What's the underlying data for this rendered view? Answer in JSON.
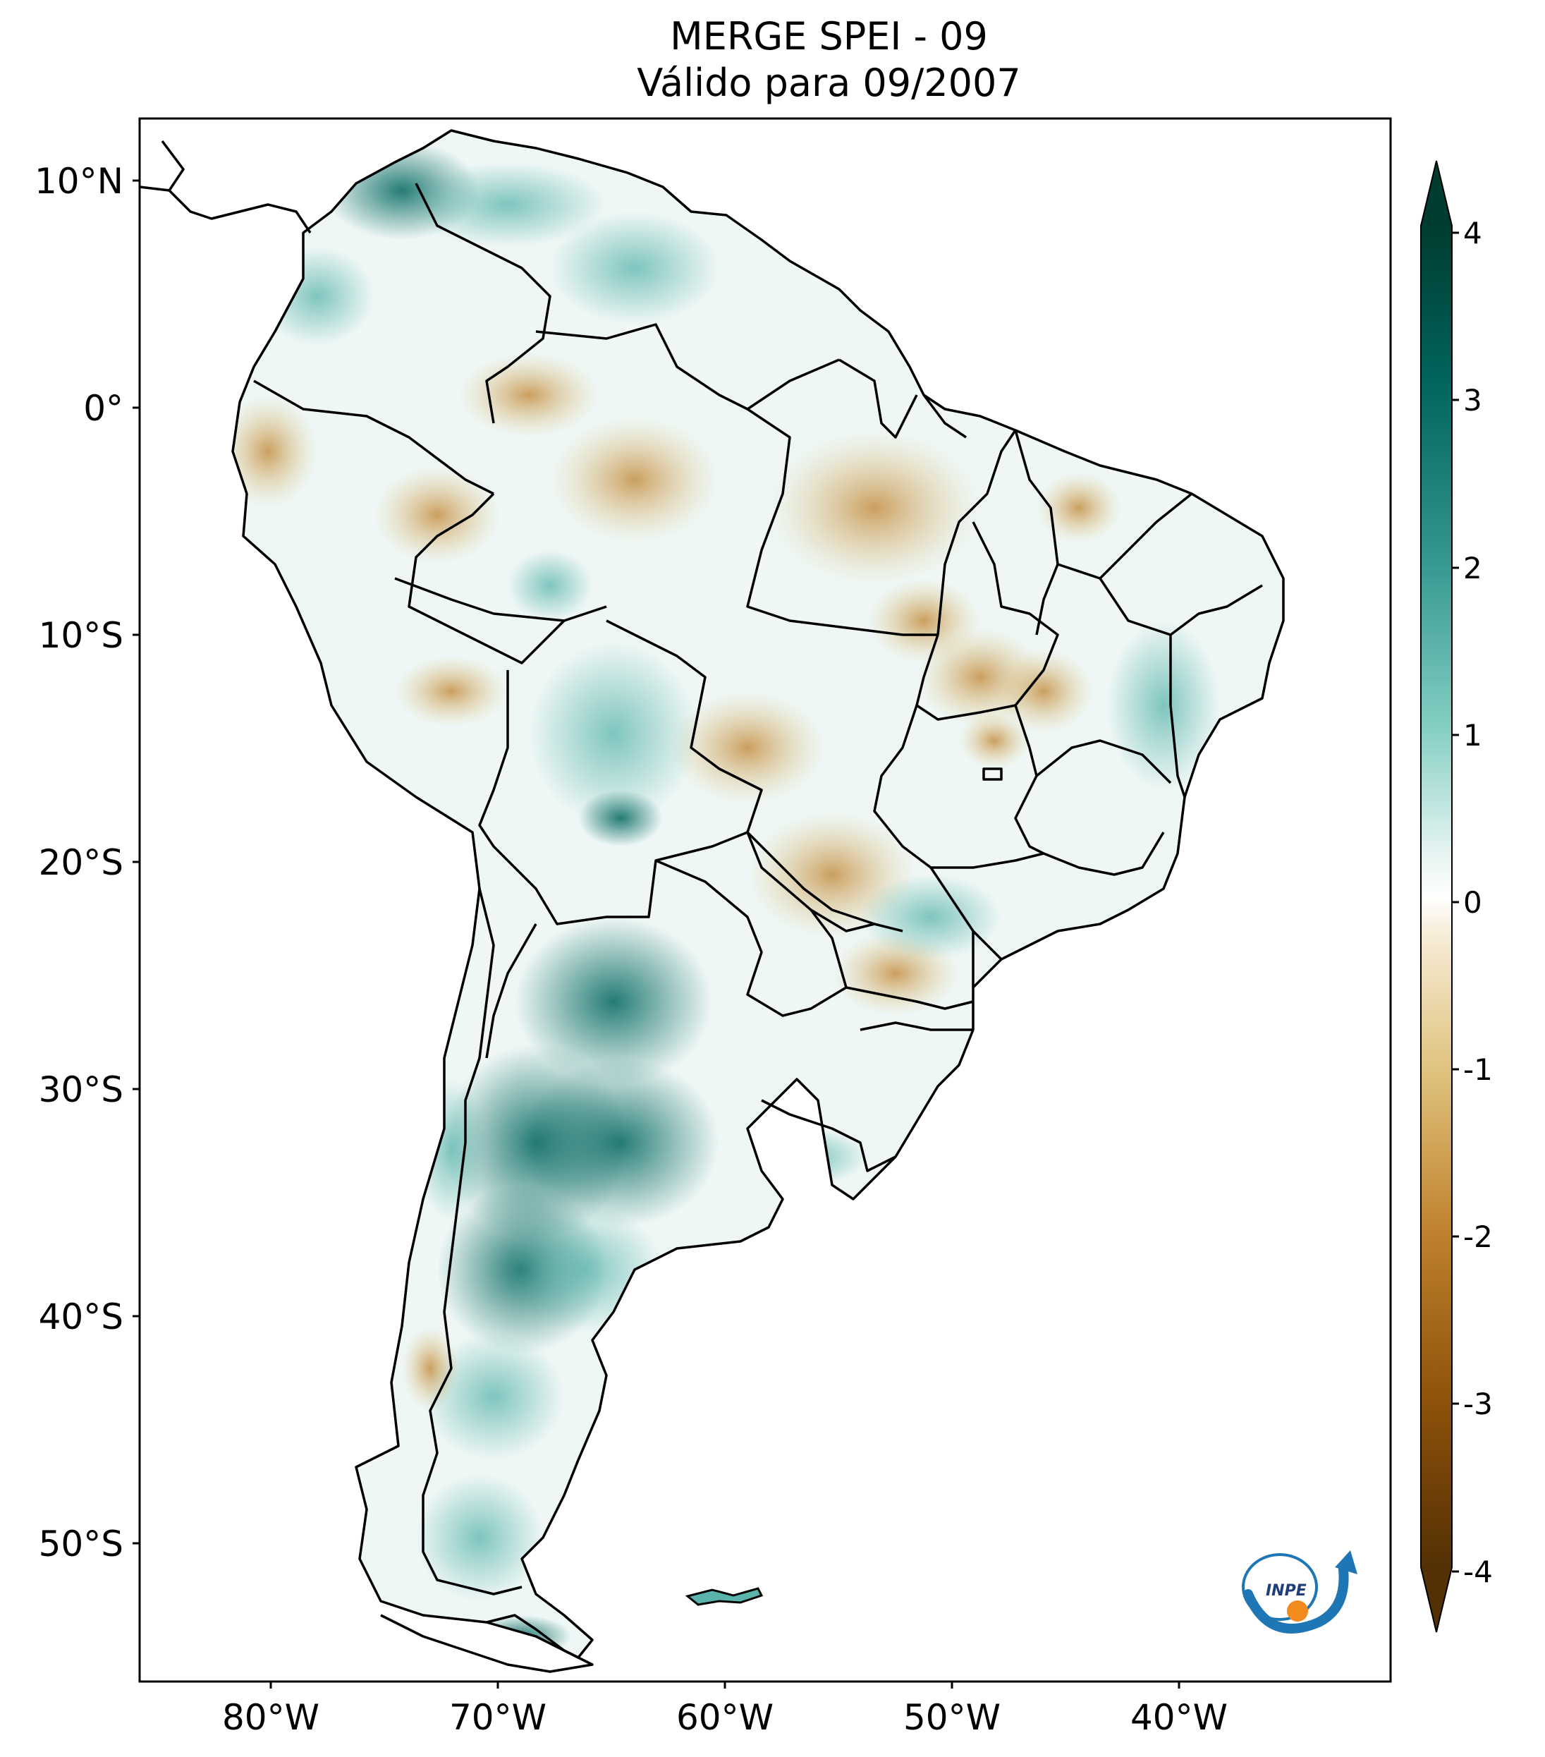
{
  "title_line1": "MERGE   SPEI - 09",
  "title_line2": "Válido para 09/2007",
  "lat_labels": [
    "10°N",
    "0°",
    "10°S",
    "20°S",
    "30°S",
    "40°S",
    "50°S"
  ],
  "lon_labels": [
    "80°W",
    "70°W",
    "60°W",
    "50°W",
    "40°W"
  ],
  "colorbar": {
    "ticks": [
      "4",
      "3",
      "2",
      "1",
      "0",
      "-1",
      "-2",
      "-3",
      "-4"
    ],
    "colors": {
      "wet_max": "#003c30",
      "wet": "#01665e",
      "wet_mid": "#5ab4ac",
      "neutral": "#ffffff",
      "dry_mid": "#d8b365",
      "dry": "#8c510a",
      "dry_max": "#543005"
    }
  },
  "map": {
    "extent_lon": [
      -85,
      -30
    ],
    "extent_lat": [
      -56,
      13
    ],
    "colormap": "BrBG",
    "logo_text": "INPE"
  }
}
